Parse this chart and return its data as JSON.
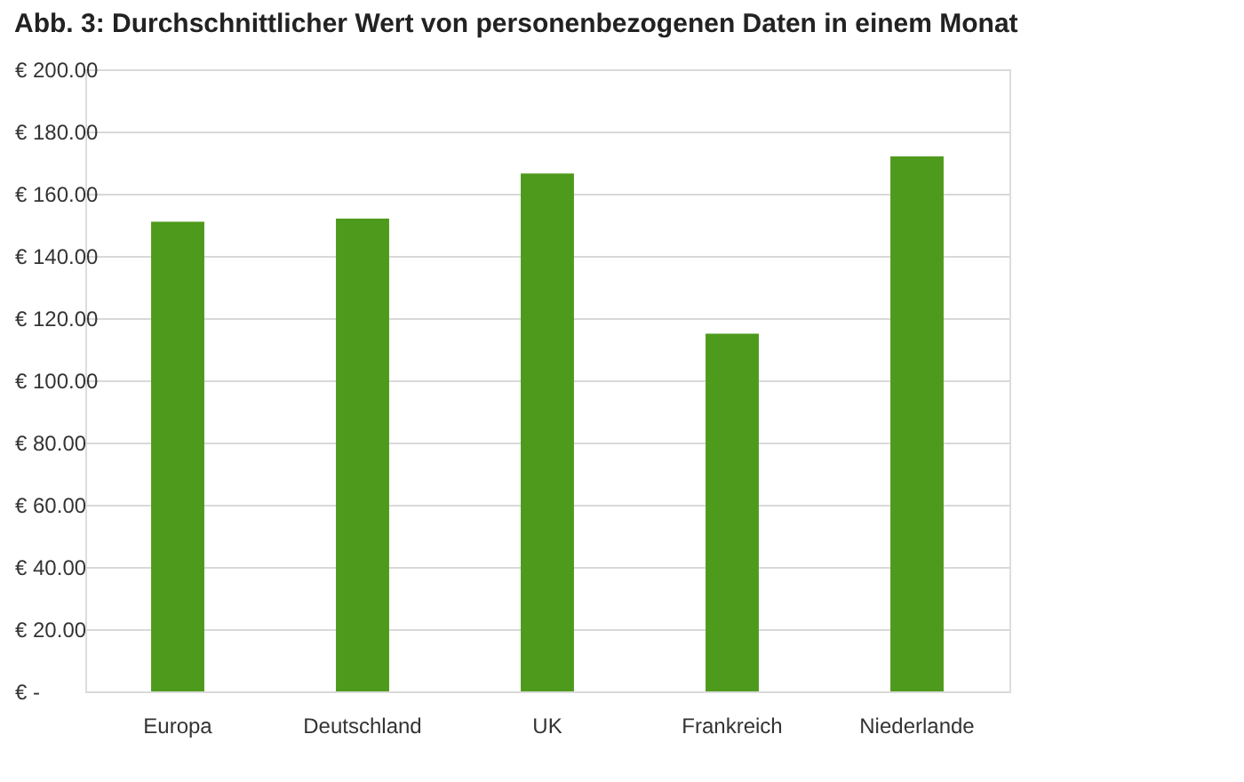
{
  "chart_data": {
    "type": "bar",
    "title": "Abb. 3: Durchschnittlicher Wert von personenbezogenen Daten in einem Monat",
    "categories": [
      "Europa",
      "Deutschland",
      "UK",
      "Frankreich",
      "Niederlande"
    ],
    "values": [
      151,
      152,
      166.5,
      115,
      172
    ],
    "color": "#4e9a1c",
    "ylim": [
      0,
      200
    ],
    "yticks": [
      {
        "value": 0,
        "label": "€ -"
      },
      {
        "value": 20,
        "label": "€ 20.00"
      },
      {
        "value": 40,
        "label": "€ 40.00"
      },
      {
        "value": 60,
        "label": "€ 60.00"
      },
      {
        "value": 80,
        "label": "€ 80.00"
      },
      {
        "value": 100,
        "label": "€ 100.00"
      },
      {
        "value": 120,
        "label": "€ 120.00"
      },
      {
        "value": 140,
        "label": "€ 140.00"
      },
      {
        "value": 160,
        "label": "€ 160.00"
      },
      {
        "value": 180,
        "label": "€ 180.00"
      },
      {
        "value": 200,
        "label": "€ 200.00"
      }
    ],
    "grid": "y"
  }
}
